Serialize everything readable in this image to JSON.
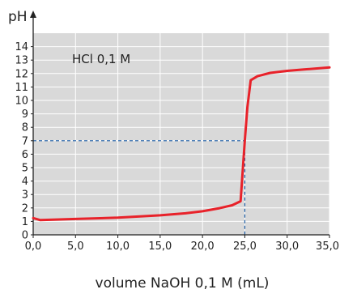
{
  "chart_data": {
    "type": "line",
    "title": "",
    "xlabel": "volume NaOH 0,1 M (mL)",
    "ylabel": "pH",
    "annotation": "HCl 0,1 M",
    "xlim": [
      0,
      35
    ],
    "ylim": [
      0,
      15
    ],
    "x_tick_labels": [
      "0,0",
      "5,0",
      "10,0",
      "15,0",
      "20,0",
      "25,0",
      "30,0",
      "35,0"
    ],
    "x_tick_values": [
      0,
      5,
      10,
      15,
      20,
      25,
      30,
      35
    ],
    "y_tick_labels": [
      "0",
      "1",
      "2",
      "3",
      "4",
      "5",
      "6",
      "7",
      "8",
      "9",
      "10",
      "11",
      "12",
      "13",
      "14"
    ],
    "y_tick_values": [
      0,
      1,
      2,
      3,
      4,
      5,
      6,
      7,
      8,
      9,
      10,
      11,
      12,
      13,
      14
    ],
    "grid": true,
    "background_color": "#d9d9d9",
    "grid_color": "#ffffff",
    "line_color": "#e8222a",
    "reference_line_color": "#1f5fa6",
    "equivalence_point": {
      "x": 25,
      "y": 7
    },
    "series": [
      {
        "x": [
          0,
          0.8,
          2,
          5,
          10,
          15,
          18,
          20,
          22,
          23.5,
          24.5,
          25,
          25.3,
          25.7,
          26.5,
          28,
          30,
          32,
          35
        ],
        "y": [
          1.25,
          1.1,
          1.12,
          1.18,
          1.28,
          1.45,
          1.6,
          1.75,
          1.98,
          2.2,
          2.5,
          7.0,
          9.5,
          11.5,
          11.8,
          12.05,
          12.2,
          12.3,
          12.45
        ]
      }
    ]
  }
}
